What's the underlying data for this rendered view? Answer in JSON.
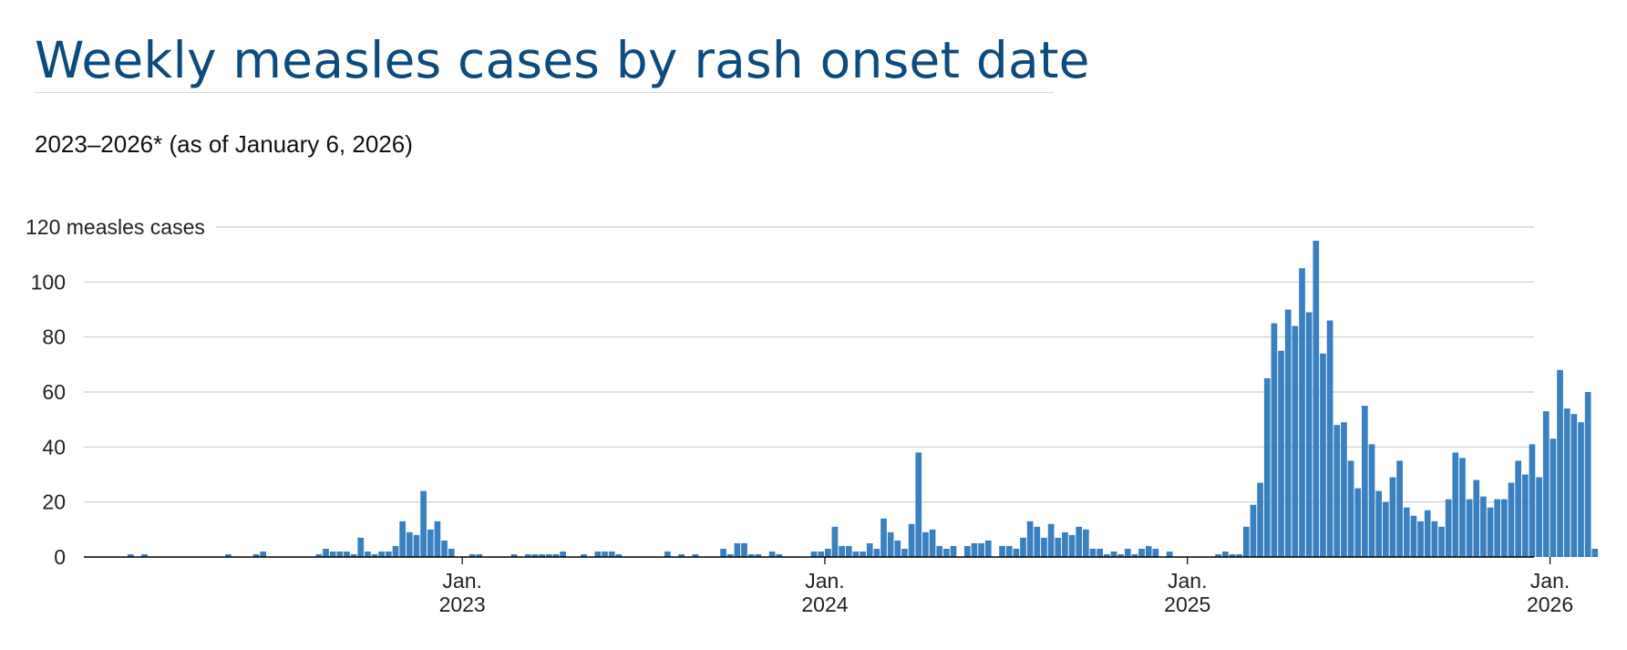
{
  "header": {
    "title": "Weekly measles cases by rash onset date",
    "subtitle": "2023–2026* (as of January 6, 2026)"
  },
  "chart_data": {
    "type": "bar",
    "title": "Weekly measles cases by rash onset date",
    "subtitle": "2023–2026* (as of January 6, 2026)",
    "ylabel": "measles cases",
    "ylim": [
      0,
      120
    ],
    "yticks": [
      0,
      20,
      40,
      60,
      80,
      100,
      120
    ],
    "y_top_tick_label": "120 measles cases",
    "bar_color": "#3a7fbf",
    "grid": true,
    "start_week": "2022-01-09",
    "x_ticks": [
      {
        "month": "Jan.",
        "year": "2023",
        "week_index": 51
      },
      {
        "month": "Jan.",
        "year": "2024",
        "week_index": 103
      },
      {
        "month": "Jan.",
        "year": "2025",
        "week_index": 155
      },
      {
        "month": "Jan.",
        "year": "2026",
        "week_index": 207
      }
    ],
    "values": [
      0,
      0,
      0,
      1,
      0,
      1,
      0,
      0,
      0,
      0,
      0,
      0,
      0,
      0,
      0,
      0,
      0,
      1,
      0,
      0,
      0,
      1,
      2,
      0,
      0,
      0,
      0,
      0,
      0,
      0,
      1,
      3,
      2,
      2,
      2,
      1,
      7,
      2,
      1,
      2,
      2,
      4,
      13,
      9,
      8,
      24,
      10,
      13,
      6,
      3,
      0,
      0,
      1,
      1,
      0,
      0,
      0,
      0,
      1,
      0,
      1,
      1,
      1,
      1,
      1,
      2,
      0,
      0,
      1,
      0,
      2,
      2,
      2,
      1,
      0,
      0,
      0,
      0,
      0,
      0,
      2,
      0,
      1,
      0,
      1,
      0,
      0,
      0,
      3,
      1,
      5,
      5,
      1,
      1,
      0,
      2,
      1,
      0,
      0,
      0,
      0,
      2,
      2,
      3,
      11,
      4,
      4,
      2,
      2,
      5,
      3,
      14,
      9,
      6,
      3,
      12,
      38,
      9,
      10,
      4,
      3,
      4,
      0,
      4,
      5,
      5,
      6,
      0,
      4,
      4,
      3,
      7,
      13,
      11,
      7,
      12,
      7,
      9,
      8,
      11,
      10,
      3,
      3,
      1,
      2,
      1,
      3,
      1,
      3,
      4,
      3,
      0,
      2,
      0,
      0,
      0,
      0,
      0,
      0,
      1,
      2,
      1,
      1,
      11,
      19,
      27,
      65,
      85,
      75,
      90,
      84,
      105,
      89,
      115,
      74,
      86,
      48,
      49,
      35,
      25,
      55,
      41,
      24,
      20,
      29,
      35,
      18,
      15,
      13,
      17,
      13,
      11,
      21,
      38,
      36,
      21,
      28,
      22,
      18,
      21,
      21,
      27,
      35,
      30,
      41,
      29,
      53,
      43,
      68,
      54,
      52,
      49,
      60,
      3
    ]
  }
}
